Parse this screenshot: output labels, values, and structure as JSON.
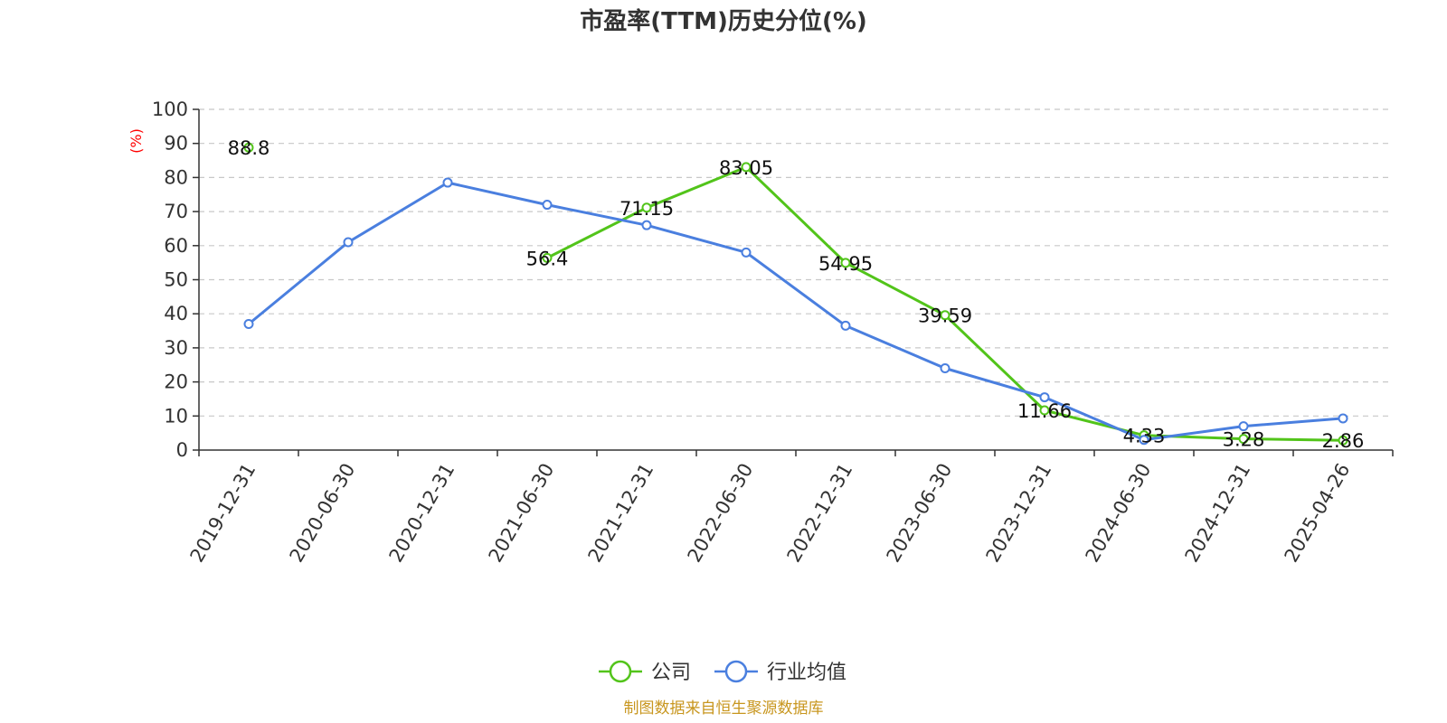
{
  "chart_data": {
    "type": "line",
    "title": "市盈率(TTM)历史分位(%)",
    "ylabel": "(%)",
    "ylim": [
      0,
      100
    ],
    "yticks": [
      0,
      10,
      20,
      30,
      40,
      50,
      60,
      70,
      80,
      90,
      100
    ],
    "categories": [
      "2019-12-31",
      "2020-06-30",
      "2020-12-31",
      "2021-06-30",
      "2021-12-31",
      "2022-06-30",
      "2022-12-31",
      "2023-06-30",
      "2023-12-31",
      "2024-06-30",
      "2024-12-31",
      "2025-04-26"
    ],
    "grid": true,
    "legend_position": "bottom",
    "series": [
      {
        "name": "公司",
        "color": "#52c41a",
        "values": [
          88.8,
          null,
          null,
          56.4,
          71.15,
          83.05,
          54.95,
          39.59,
          11.66,
          4.33,
          3.28,
          2.86
        ],
        "labels": [
          "88.8",
          null,
          null,
          "56.4",
          "71.15",
          "83.05",
          "54.95",
          "39.59",
          "11.66",
          "4.33",
          "3.28",
          "2.86"
        ]
      },
      {
        "name": "行业均值",
        "color": "#4a7fdf",
        "values": [
          37,
          61,
          78.5,
          72,
          66,
          58,
          36.5,
          24,
          15.5,
          3,
          7,
          9.3
        ]
      }
    ]
  },
  "source": "制图数据来自恒生聚源数据库"
}
